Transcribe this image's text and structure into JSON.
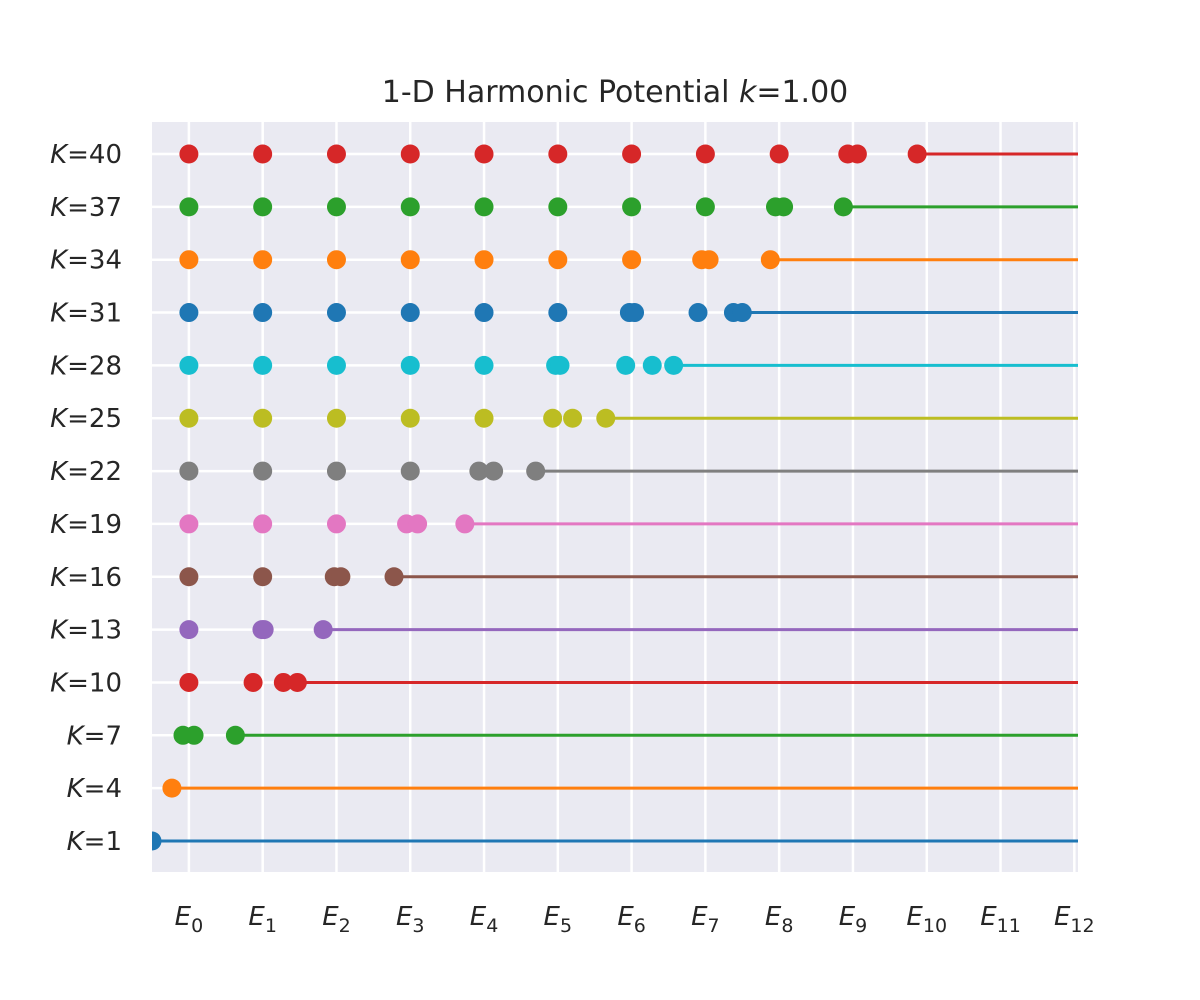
{
  "chart_data": {
    "type": "scatter",
    "title": "1-D Harmonic Potential k=1.00",
    "title_parts": {
      "prefix": "1-D Harmonic Potential ",
      "var": "k",
      "suffix": "=1.00"
    },
    "x_ticks": [
      {
        "base": "E",
        "sub": "0",
        "value": 0
      },
      {
        "base": "E",
        "sub": "1",
        "value": 1
      },
      {
        "base": "E",
        "sub": "2",
        "value": 2
      },
      {
        "base": "E",
        "sub": "3",
        "value": 3
      },
      {
        "base": "E",
        "sub": "4",
        "value": 4
      },
      {
        "base": "E",
        "sub": "5",
        "value": 5
      },
      {
        "base": "E",
        "sub": "6",
        "value": 6
      },
      {
        "base": "E",
        "sub": "7",
        "value": 7
      },
      {
        "base": "E",
        "sub": "8",
        "value": 8
      },
      {
        "base": "E",
        "sub": "9",
        "value": 9
      },
      {
        "base": "E",
        "sub": "10",
        "value": 10
      },
      {
        "base": "E",
        "sub": "11",
        "value": 11
      },
      {
        "base": "E",
        "sub": "12",
        "value": 12
      }
    ],
    "xlim": [
      -0.5,
      12.05
    ],
    "grid": true,
    "series": [
      {
        "label_var": "K",
        "label_val": "=1",
        "color": "#1f77b4",
        "points": [
          -0.5
        ]
      },
      {
        "label_var": "K",
        "label_val": "=4",
        "color": "#ff7f0e",
        "points": [
          -0.23
        ]
      },
      {
        "label_var": "K",
        "label_val": "=7",
        "color": "#2ca02c",
        "points": [
          -0.08,
          0.07,
          0.63
        ]
      },
      {
        "label_var": "K",
        "label_val": "=10",
        "color": "#d62728",
        "points": [
          0.0,
          0.87,
          1.28,
          1.47
        ]
      },
      {
        "label_var": "K",
        "label_val": "=13",
        "color": "#9467bd",
        "points": [
          0.0,
          0.99,
          1.02,
          1.82
        ]
      },
      {
        "label_var": "K",
        "label_val": "=16",
        "color": "#8c564b",
        "points": [
          0.0,
          1.0,
          1.97,
          2.06,
          2.78
        ]
      },
      {
        "label_var": "K",
        "label_val": "=19",
        "color": "#e377c2",
        "points": [
          0.0,
          1.0,
          2.0,
          2.95,
          3.1,
          3.74
        ]
      },
      {
        "label_var": "K",
        "label_val": "=22",
        "color": "#7f7f7f",
        "points": [
          0.0,
          1.0,
          2.0,
          3.0,
          3.93,
          4.13,
          4.7
        ]
      },
      {
        "label_var": "K",
        "label_val": "=25",
        "color": "#bcbd22",
        "points": [
          0.0,
          1.0,
          2.0,
          3.0,
          4.0,
          4.93,
          5.2,
          5.65
        ]
      },
      {
        "label_var": "K",
        "label_val": "=28",
        "color": "#17becf",
        "points": [
          0.0,
          1.0,
          2.0,
          3.0,
          4.0,
          4.97,
          5.03,
          5.92,
          6.28,
          6.57
        ]
      },
      {
        "label_var": "K",
        "label_val": "=31",
        "color": "#1f77b4",
        "points": [
          0.0,
          1.0,
          2.0,
          3.0,
          4.0,
          5.0,
          5.97,
          6.04,
          6.9,
          7.38,
          7.5
        ]
      },
      {
        "label_var": "K",
        "label_val": "=34",
        "color": "#ff7f0e",
        "points": [
          0.0,
          1.0,
          2.0,
          3.0,
          4.0,
          5.0,
          6.0,
          6.95,
          7.05,
          7.88
        ]
      },
      {
        "label_var": "K",
        "label_val": "=37",
        "color": "#2ca02c",
        "points": [
          0.0,
          1.0,
          2.0,
          3.0,
          4.0,
          5.0,
          6.0,
          7.0,
          7.95,
          8.06,
          8.87
        ]
      },
      {
        "label_var": "K",
        "label_val": "=40",
        "color": "#d62728",
        "points": [
          0.0,
          1.0,
          2.0,
          3.0,
          4.0,
          5.0,
          6.0,
          7.0,
          8.0,
          8.93,
          9.06,
          9.87
        ]
      }
    ]
  }
}
